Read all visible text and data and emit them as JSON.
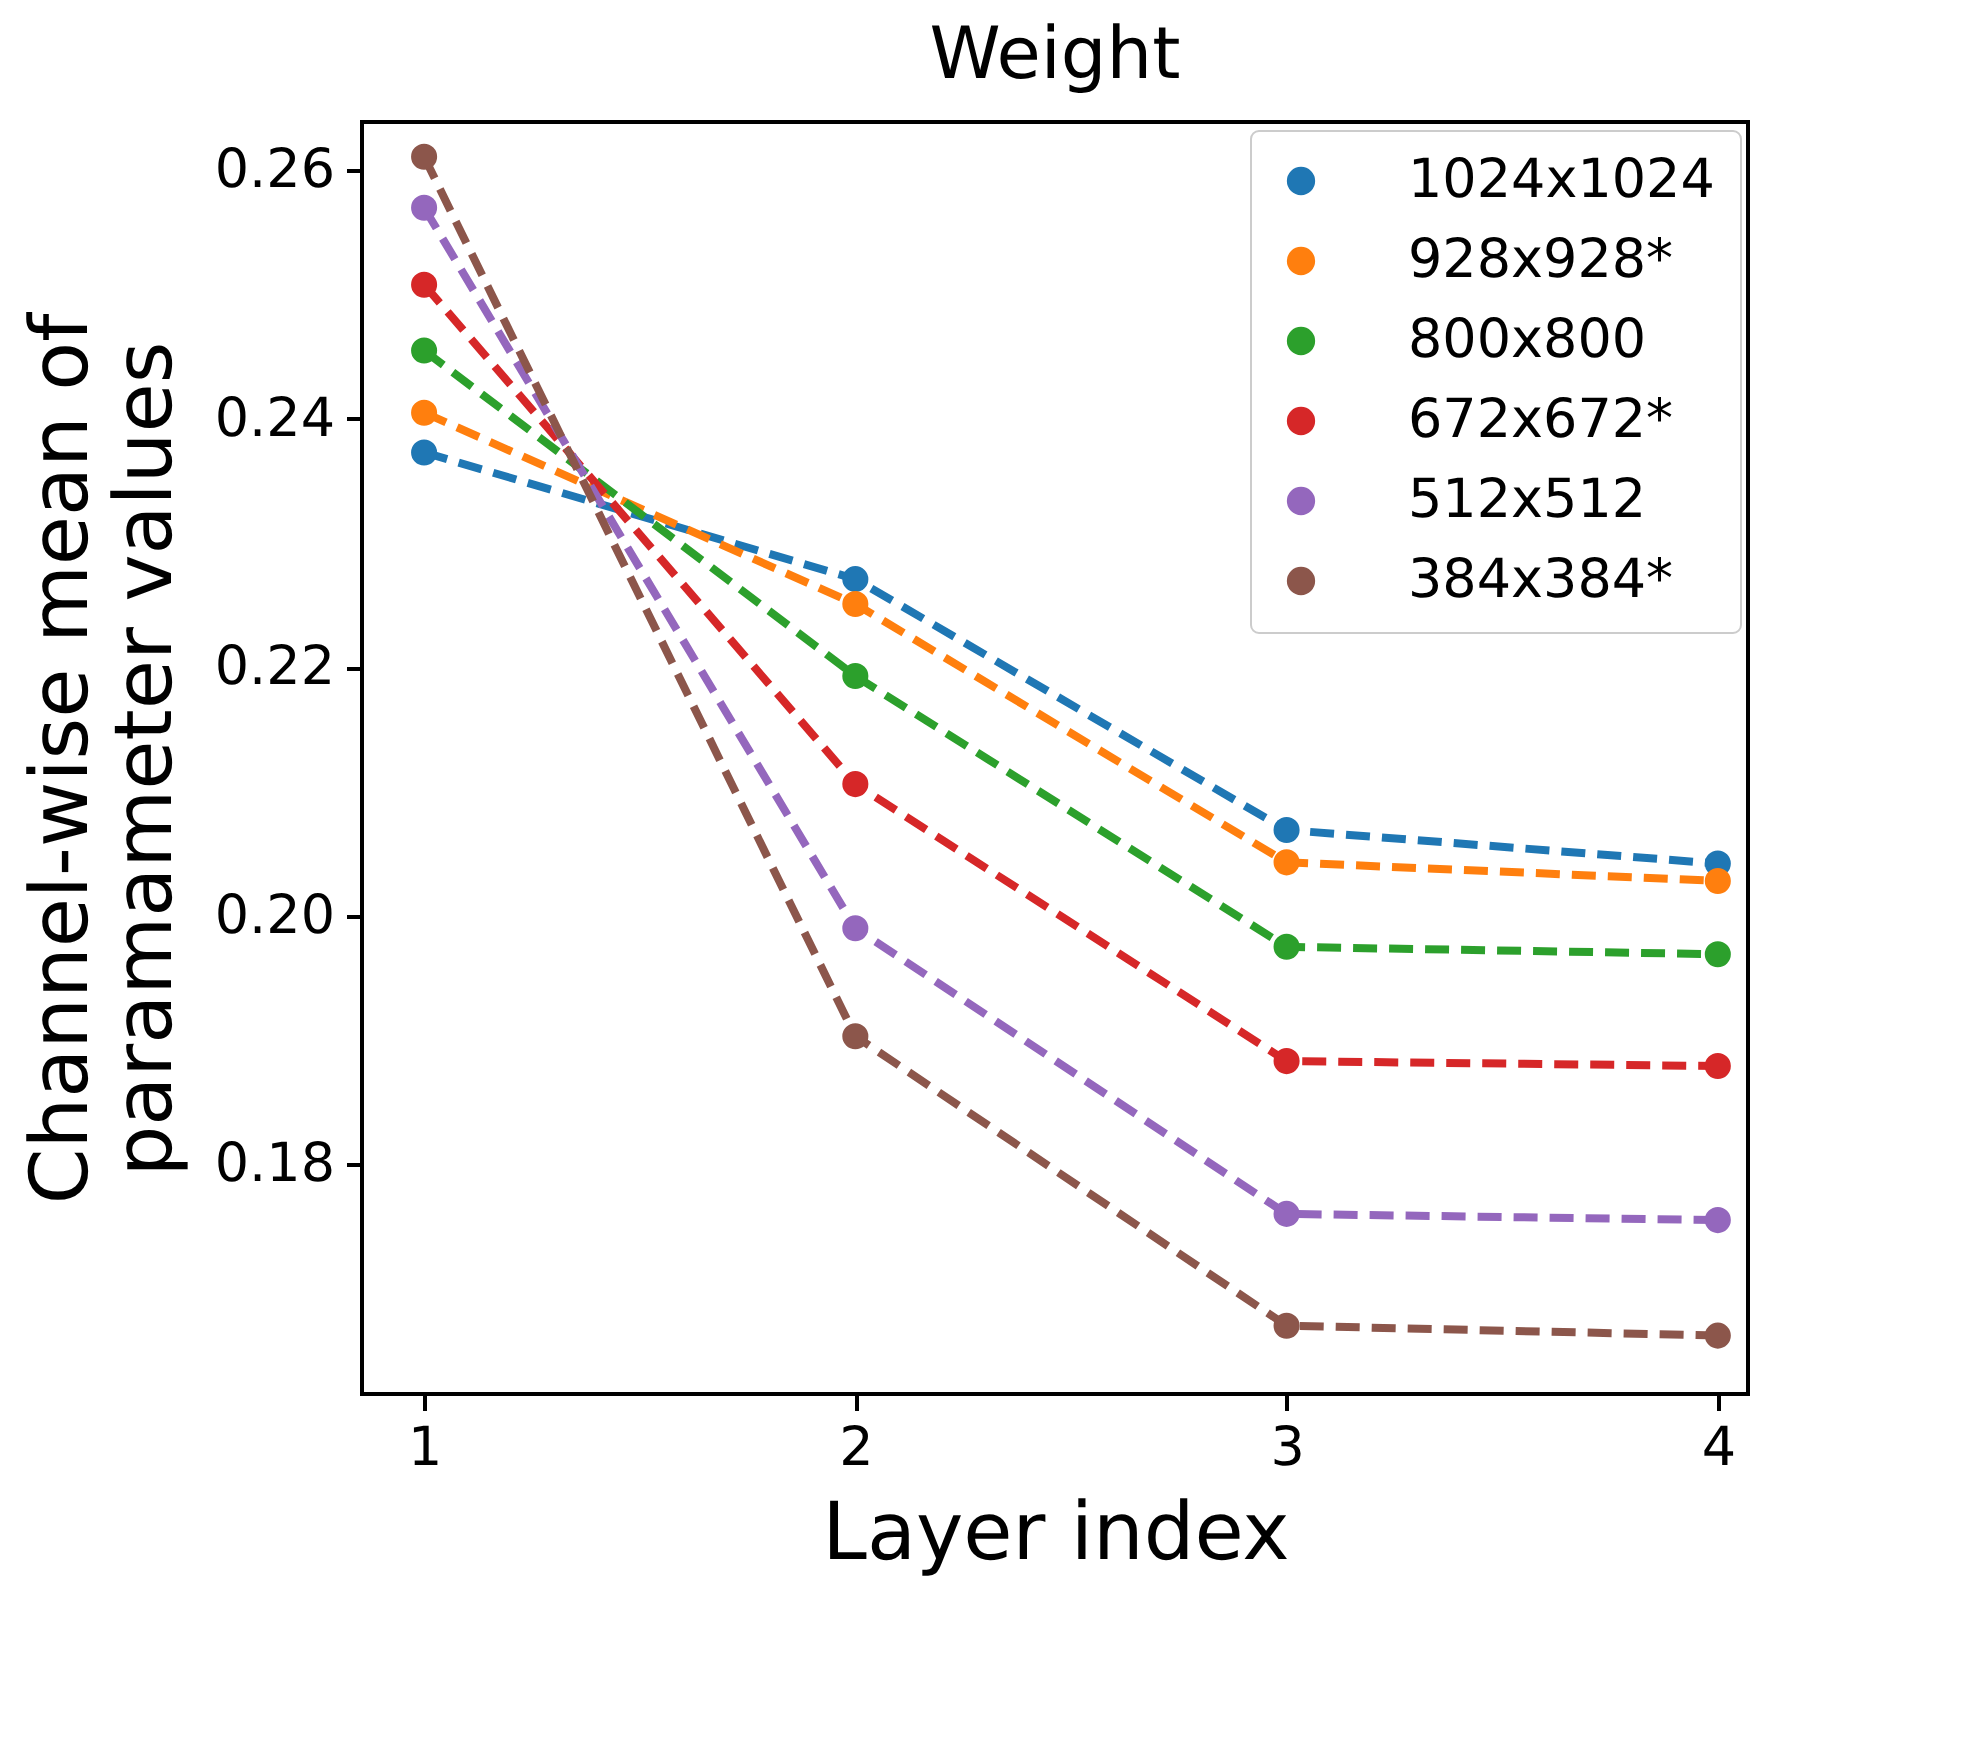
{
  "chart_data": {
    "type": "line",
    "title": "Weight",
    "xlabel": "Layer index",
    "ylabel": "Channel-wise mean of\nparamameter values",
    "x": [
      1,
      2,
      3,
      4
    ],
    "series": [
      {
        "name": "1024x1024",
        "color": "#1f77b4",
        "values": [
          0.2373,
          0.2271,
          0.2069,
          0.2042
        ]
      },
      {
        "name": "928x928*",
        "color": "#ff7f0e",
        "values": [
          0.2405,
          0.2251,
          0.2043,
          0.2028
        ]
      },
      {
        "name": "800x800",
        "color": "#2ca02c",
        "values": [
          0.2455,
          0.2193,
          0.1975,
          0.1969
        ]
      },
      {
        "name": "672x672*",
        "color": "#d62728",
        "values": [
          0.2508,
          0.2106,
          0.1883,
          0.1879
        ]
      },
      {
        "name": "512x512",
        "color": "#9467bd",
        "values": [
          0.257,
          0.199,
          0.176,
          0.1755
        ]
      },
      {
        "name": "384x384*",
        "color": "#8c564b",
        "values": [
          0.2611,
          0.1903,
          0.167,
          0.1662
        ]
      }
    ],
    "xlim": [
      0.856,
      4.07
    ],
    "ylim": [
      0.1615,
      0.2639
    ],
    "xticks": [
      1,
      2,
      3,
      4
    ],
    "yticks": [
      0.18,
      {
        "value": 0.2,
        "label": "0.20"
      },
      0.22,
      0.24,
      0.26
    ],
    "grid": false,
    "legend": "top right",
    "marker": "circle",
    "line_style": "dashed"
  }
}
